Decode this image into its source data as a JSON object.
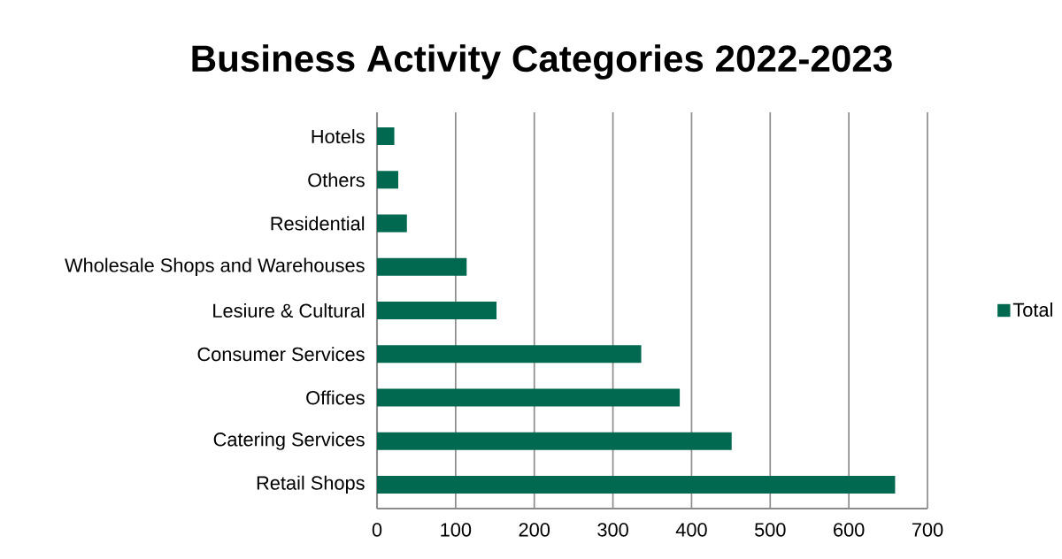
{
  "chart_data": {
    "type": "bar",
    "orientation": "horizontal",
    "title": "Business Activity Categories 2022-2023",
    "categories": [
      "Hotels",
      "Others",
      "Residential",
      "Wholesale Shops and Warehouses",
      "Lesiure & Cultural",
      "Consumer Services",
      "Offices",
      "Catering Services",
      "Retail Shops"
    ],
    "series": [
      {
        "name": "Total",
        "color": "#006950",
        "values": [
          22,
          27,
          38,
          114,
          152,
          336,
          385,
          451,
          659
        ]
      }
    ],
    "xlim": [
      0,
      700
    ],
    "xticks": [
      0,
      100,
      200,
      300,
      400,
      500,
      600,
      700
    ],
    "grid": "x",
    "legend": "right"
  }
}
